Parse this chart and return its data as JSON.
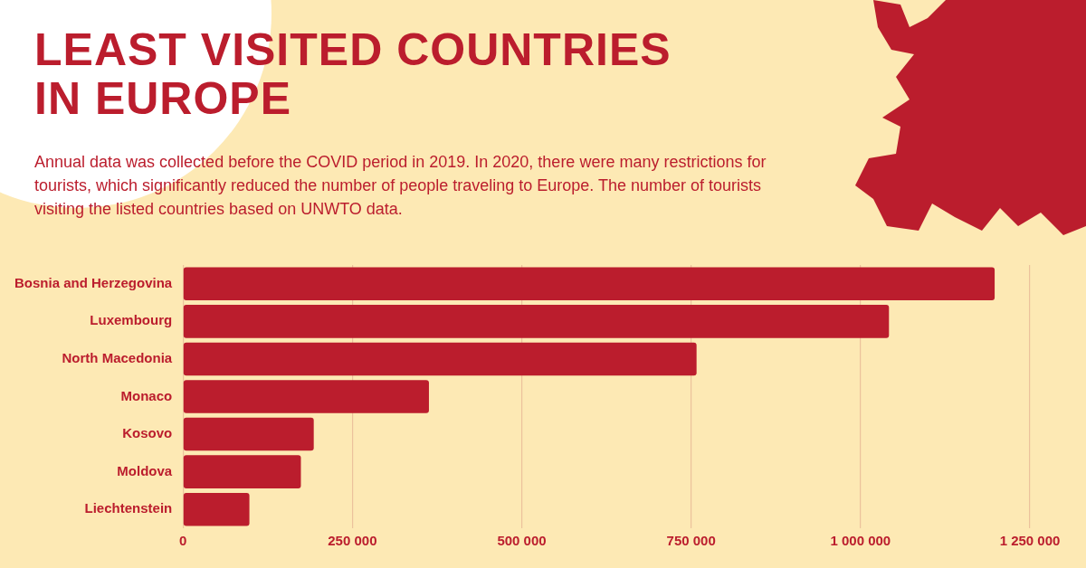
{
  "chart_data": {
    "type": "bar",
    "orientation": "horizontal",
    "title": "LEAST VISITED COUNTRIES\nIN EUROPE",
    "subtitle": "Annual data was collected before the COVID period in 2019. In 2020, there were many restrictions for tourists, which significantly reduced the number of people traveling to Europe. The number of tourists visiting the listed countries based on UNWTO data.",
    "categories": [
      "Bosnia and Herzegovina",
      "Luxembourg",
      "North Macedonia",
      "Monaco",
      "Kosovo",
      "Moldova",
      "Liechtenstein"
    ],
    "values": [
      1198000,
      1042000,
      758000,
      363000,
      193000,
      174000,
      98000
    ],
    "color": "#bb1d2d",
    "xlim": [
      0,
      1250000
    ],
    "xticks": [
      {
        "value": 0,
        "label": "0"
      },
      {
        "value": 250000,
        "label": "250 000"
      },
      {
        "value": 500000,
        "label": "500 000"
      },
      {
        "value": 750000,
        "label": "750 000"
      },
      {
        "value": 1000000,
        "label": "1 000 000"
      },
      {
        "value": 1250000,
        "label": "1 250 000"
      }
    ],
    "grid": "x"
  }
}
